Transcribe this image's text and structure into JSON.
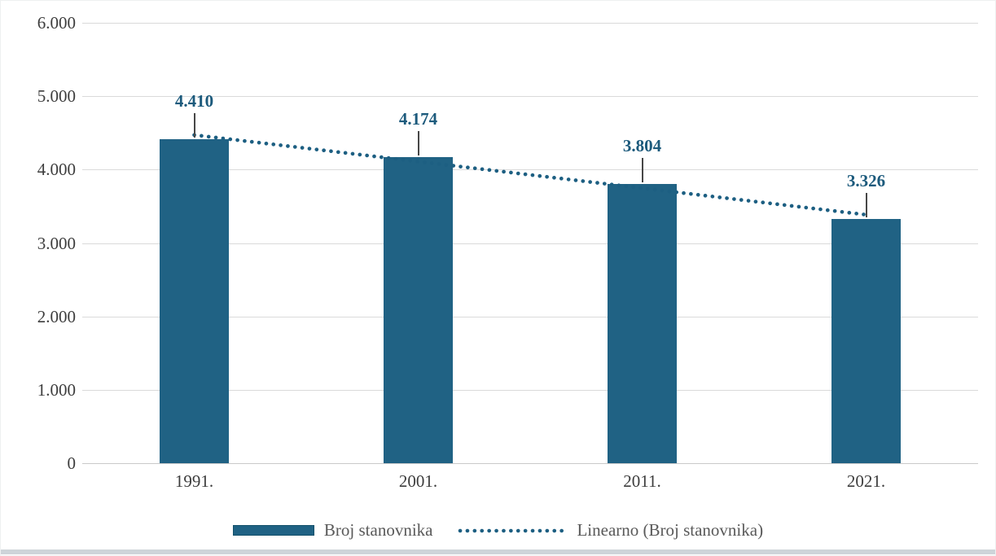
{
  "chart_data": {
    "type": "bar",
    "title": "",
    "categories": [
      "1991.",
      "2001.",
      "2011.",
      "2021."
    ],
    "series": [
      {
        "name": "Broj stanovnika",
        "values": [
          4410,
          4174,
          3804,
          3326
        ]
      }
    ],
    "data_labels": [
      "4.410",
      "4.174",
      "3.804",
      "3.326"
    ],
    "trendline": {
      "name": "Linearno (Broj stanovnika)",
      "type": "linear",
      "style": "dotted"
    },
    "y_axis": {
      "min": 0,
      "max": 6000,
      "step": 1000,
      "tick_labels": [
        "0",
        "1.000",
        "2.000",
        "3.000",
        "4.000",
        "5.000",
        "6.000"
      ]
    },
    "x_axis": {
      "label": ""
    },
    "grid": true,
    "legend_position": "bottom"
  },
  "colors": {
    "bar": "#206284",
    "bar_swatch_border": "#14506a",
    "trendline": "#1d5f82",
    "data_label_text": "#1c5a7c",
    "axis_text": "#3d3d3d",
    "legend_text": "#595959",
    "gridline": "#dadada",
    "axis_line": "#c9c9c9",
    "leader_line": "#474747",
    "bottom_strip": "#ced4d9"
  }
}
